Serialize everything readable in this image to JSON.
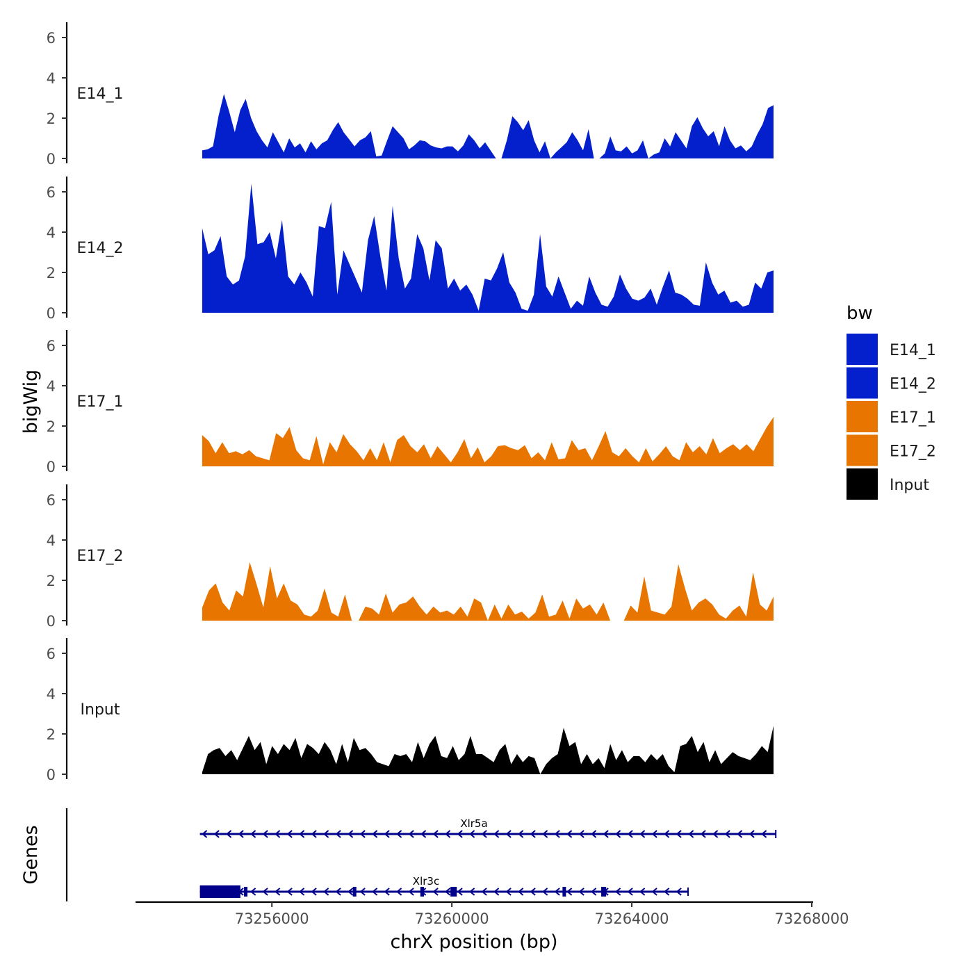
{
  "chart_data": {
    "type": "area",
    "title": "",
    "ylabel": "bigWig",
    "xlabel": "chrX position (bp)",
    "xlim": [
      73253000,
      73268000
    ],
    "ylim": [
      0,
      6.7
    ],
    "x_ticks": [
      73256000,
      73260000,
      73264000,
      73268000
    ],
    "x_tick_labels": [
      "73256000",
      "73260000",
      "73264000",
      "73268000"
    ],
    "y_ticks": [
      0,
      2,
      4,
      6
    ],
    "y_tick_labels": [
      "0",
      "2",
      "4",
      "6"
    ],
    "data_start": 73254450,
    "data_end": 73267150,
    "tracks": [
      {
        "name": "E14_1",
        "color": "#0320CC",
        "values": [
          0.4,
          0.45,
          0.6,
          2.1,
          3.2,
          2.3,
          1.3,
          2.4,
          2.95,
          2.0,
          1.35,
          0.9,
          0.55,
          1.3,
          0.8,
          0.3,
          1.0,
          0.55,
          0.75,
          0.3,
          0.85,
          0.45,
          0.75,
          0.9,
          1.4,
          1.8,
          1.3,
          0.95,
          0.6,
          0.9,
          1.05,
          1.35,
          0.1,
          0.15,
          0.9,
          1.6,
          1.3,
          1.0,
          0.45,
          0.65,
          0.9,
          0.85,
          0.65,
          0.55,
          0.5,
          0.6,
          0.6,
          0.35,
          0.65,
          1.2,
          0.9,
          0.5,
          0.8,
          0.4,
          0.0,
          0.0,
          0.9,
          2.1,
          1.8,
          1.4,
          1.9,
          0.9,
          0.3,
          0.85,
          0.0,
          0.3,
          0.55,
          0.8,
          1.3,
          0.9,
          0.4,
          1.45,
          0.0,
          0.0,
          0.25,
          1.1,
          0.4,
          0.35,
          0.6,
          0.25,
          0.4,
          0.9,
          0.0,
          0.2,
          0.3,
          1.0,
          0.6,
          1.3,
          0.9,
          0.5,
          1.6,
          2.05,
          1.5,
          1.1,
          1.35,
          0.6,
          1.6,
          0.9,
          0.5,
          0.65,
          0.35,
          0.6,
          1.2,
          1.7,
          2.5,
          2.65
        ]
      },
      {
        "name": "E14_2",
        "color": "#0320CC",
        "values": [
          4.2,
          2.9,
          3.1,
          3.8,
          1.8,
          1.4,
          1.6,
          2.8,
          6.4,
          3.4,
          3.5,
          4.0,
          2.7,
          4.6,
          1.8,
          1.4,
          2.0,
          1.5,
          0.8,
          4.3,
          4.2,
          5.5,
          0.9,
          3.1,
          2.4,
          1.7,
          1.0,
          3.6,
          4.8,
          2.8,
          1.1,
          5.3,
          2.7,
          1.2,
          1.7,
          3.9,
          3.2,
          1.6,
          3.6,
          3.2,
          1.2,
          1.7,
          1.1,
          1.4,
          0.9,
          0.1,
          1.7,
          1.6,
          2.2,
          3.0,
          1.5,
          1.0,
          0.2,
          0.1,
          0.9,
          3.9,
          1.3,
          0.8,
          1.8,
          1.0,
          0.2,
          0.6,
          0.35,
          1.8,
          1.0,
          0.4,
          0.3,
          0.8,
          1.9,
          1.2,
          0.7,
          0.6,
          0.75,
          1.2,
          0.4,
          1.3,
          2.1,
          1.0,
          0.9,
          0.7,
          0.4,
          0.35,
          2.5,
          1.5,
          0.9,
          1.1,
          0.5,
          0.6,
          0.3,
          0.4,
          1.5,
          1.2,
          2.0,
          2.1
        ]
      },
      {
        "name": "E17_1",
        "color": "#E77500",
        "values": [
          1.55,
          1.25,
          0.65,
          1.2,
          0.65,
          0.75,
          0.6,
          0.8,
          0.5,
          0.4,
          0.3,
          1.65,
          1.4,
          1.95,
          0.8,
          0.4,
          0.3,
          1.5,
          0.1,
          1.2,
          0.7,
          1.6,
          1.1,
          0.75,
          0.3,
          0.9,
          0.3,
          1.2,
          0.2,
          1.3,
          1.55,
          1.0,
          0.7,
          1.1,
          0.4,
          1.0,
          0.6,
          0.2,
          0.7,
          1.35,
          0.4,
          0.95,
          0.2,
          0.5,
          1.0,
          1.05,
          0.9,
          0.8,
          1.05,
          0.4,
          0.7,
          0.3,
          1.2,
          0.35,
          0.4,
          1.3,
          0.8,
          0.9,
          0.3,
          1.0,
          1.75,
          0.7,
          0.5,
          0.9,
          0.5,
          0.2,
          0.9,
          0.25,
          0.6,
          1.0,
          0.5,
          0.3,
          1.2,
          0.7,
          1.0,
          0.6,
          1.4,
          0.65,
          0.9,
          1.1,
          0.8,
          1.1,
          0.75,
          1.35,
          1.95,
          2.45
        ]
      },
      {
        "name": "E17_2",
        "color": "#E77500",
        "values": [
          0.65,
          1.5,
          1.85,
          0.9,
          0.5,
          1.5,
          1.2,
          2.9,
          1.8,
          0.65,
          2.7,
          1.1,
          1.85,
          1.0,
          0.8,
          0.3,
          0.2,
          0.5,
          1.6,
          0.4,
          0.2,
          1.3,
          0.0,
          0.0,
          0.7,
          0.6,
          0.3,
          1.35,
          0.4,
          0.8,
          0.9,
          1.2,
          0.7,
          0.3,
          0.7,
          0.4,
          0.5,
          0.3,
          0.7,
          0.2,
          1.1,
          0.9,
          0.0,
          0.8,
          0.1,
          0.8,
          0.3,
          0.45,
          0.1,
          0.4,
          1.3,
          0.2,
          0.3,
          1.0,
          0.1,
          1.1,
          0.6,
          0.8,
          0.3,
          0.9,
          0.0,
          0.0,
          0.0,
          0.75,
          0.4,
          2.2,
          0.5,
          0.4,
          0.3,
          0.7,
          2.8,
          1.6,
          0.5,
          0.9,
          1.1,
          0.8,
          0.3,
          0.1,
          0.5,
          0.75,
          0.2,
          2.4,
          0.8,
          0.5,
          1.2
        ]
      },
      {
        "name": "Input",
        "color": "#000000",
        "values": [
          0.1,
          1.0,
          1.2,
          1.3,
          0.9,
          1.2,
          0.7,
          1.3,
          1.9,
          1.2,
          1.6,
          0.5,
          1.4,
          1.0,
          1.5,
          1.2,
          1.8,
          0.8,
          1.5,
          1.3,
          1.0,
          1.6,
          1.2,
          0.5,
          1.5,
          0.6,
          1.8,
          1.2,
          1.3,
          1.0,
          0.6,
          0.5,
          0.4,
          1.0,
          0.9,
          1.0,
          0.6,
          1.6,
          0.8,
          1.5,
          1.9,
          0.9,
          0.8,
          1.4,
          0.7,
          1.0,
          1.9,
          1.0,
          1.0,
          0.8,
          0.6,
          1.2,
          1.5,
          0.5,
          1.0,
          0.6,
          0.9,
          0.8,
          0.0,
          0.5,
          0.8,
          1.0,
          2.3,
          1.4,
          1.6,
          0.5,
          1.0,
          0.5,
          0.8,
          0.3,
          1.5,
          0.7,
          1.2,
          0.6,
          0.9,
          0.9,
          0.6,
          1.0,
          0.7,
          1.0,
          0.4,
          0.1,
          1.4,
          1.5,
          1.9,
          1.1,
          1.6,
          0.6,
          1.2,
          0.5,
          0.8,
          1.1,
          0.9,
          0.8,
          0.7,
          1.0,
          1.4,
          1.1,
          2.4
        ]
      }
    ],
    "genes_track_label": "Genes",
    "genes": [
      {
        "name": "Xlr5a",
        "strand": "-",
        "start": 73254400,
        "end": 73267200,
        "exons": []
      },
      {
        "name": "Xlr3c",
        "strand": "-",
        "start": 73254400,
        "end": 73265250,
        "exons": [
          {
            "start": 73254400,
            "end": 73255300,
            "kind": "utr"
          },
          {
            "start": 73255380,
            "end": 73255450,
            "kind": "cds"
          },
          {
            "start": 73257800,
            "end": 73257870,
            "kind": "cds"
          },
          {
            "start": 73259300,
            "end": 73259380,
            "kind": "cds"
          },
          {
            "start": 73259970,
            "end": 73260110,
            "kind": "cds"
          },
          {
            "start": 73262460,
            "end": 73262510,
            "kind": "cds"
          },
          {
            "start": 73263320,
            "end": 73263430,
            "kind": "cds"
          }
        ]
      }
    ],
    "legend": {
      "title": "bw",
      "position": "right",
      "entries": [
        {
          "label": "E14_1",
          "color": "#0320CC"
        },
        {
          "label": "E14_2",
          "color": "#0320CC"
        },
        {
          "label": "E17_1",
          "color": "#E77500"
        },
        {
          "label": "E17_2",
          "color": "#E77500"
        },
        {
          "label": "Input",
          "color": "#000000"
        }
      ]
    },
    "gene_color": "#00008B"
  }
}
